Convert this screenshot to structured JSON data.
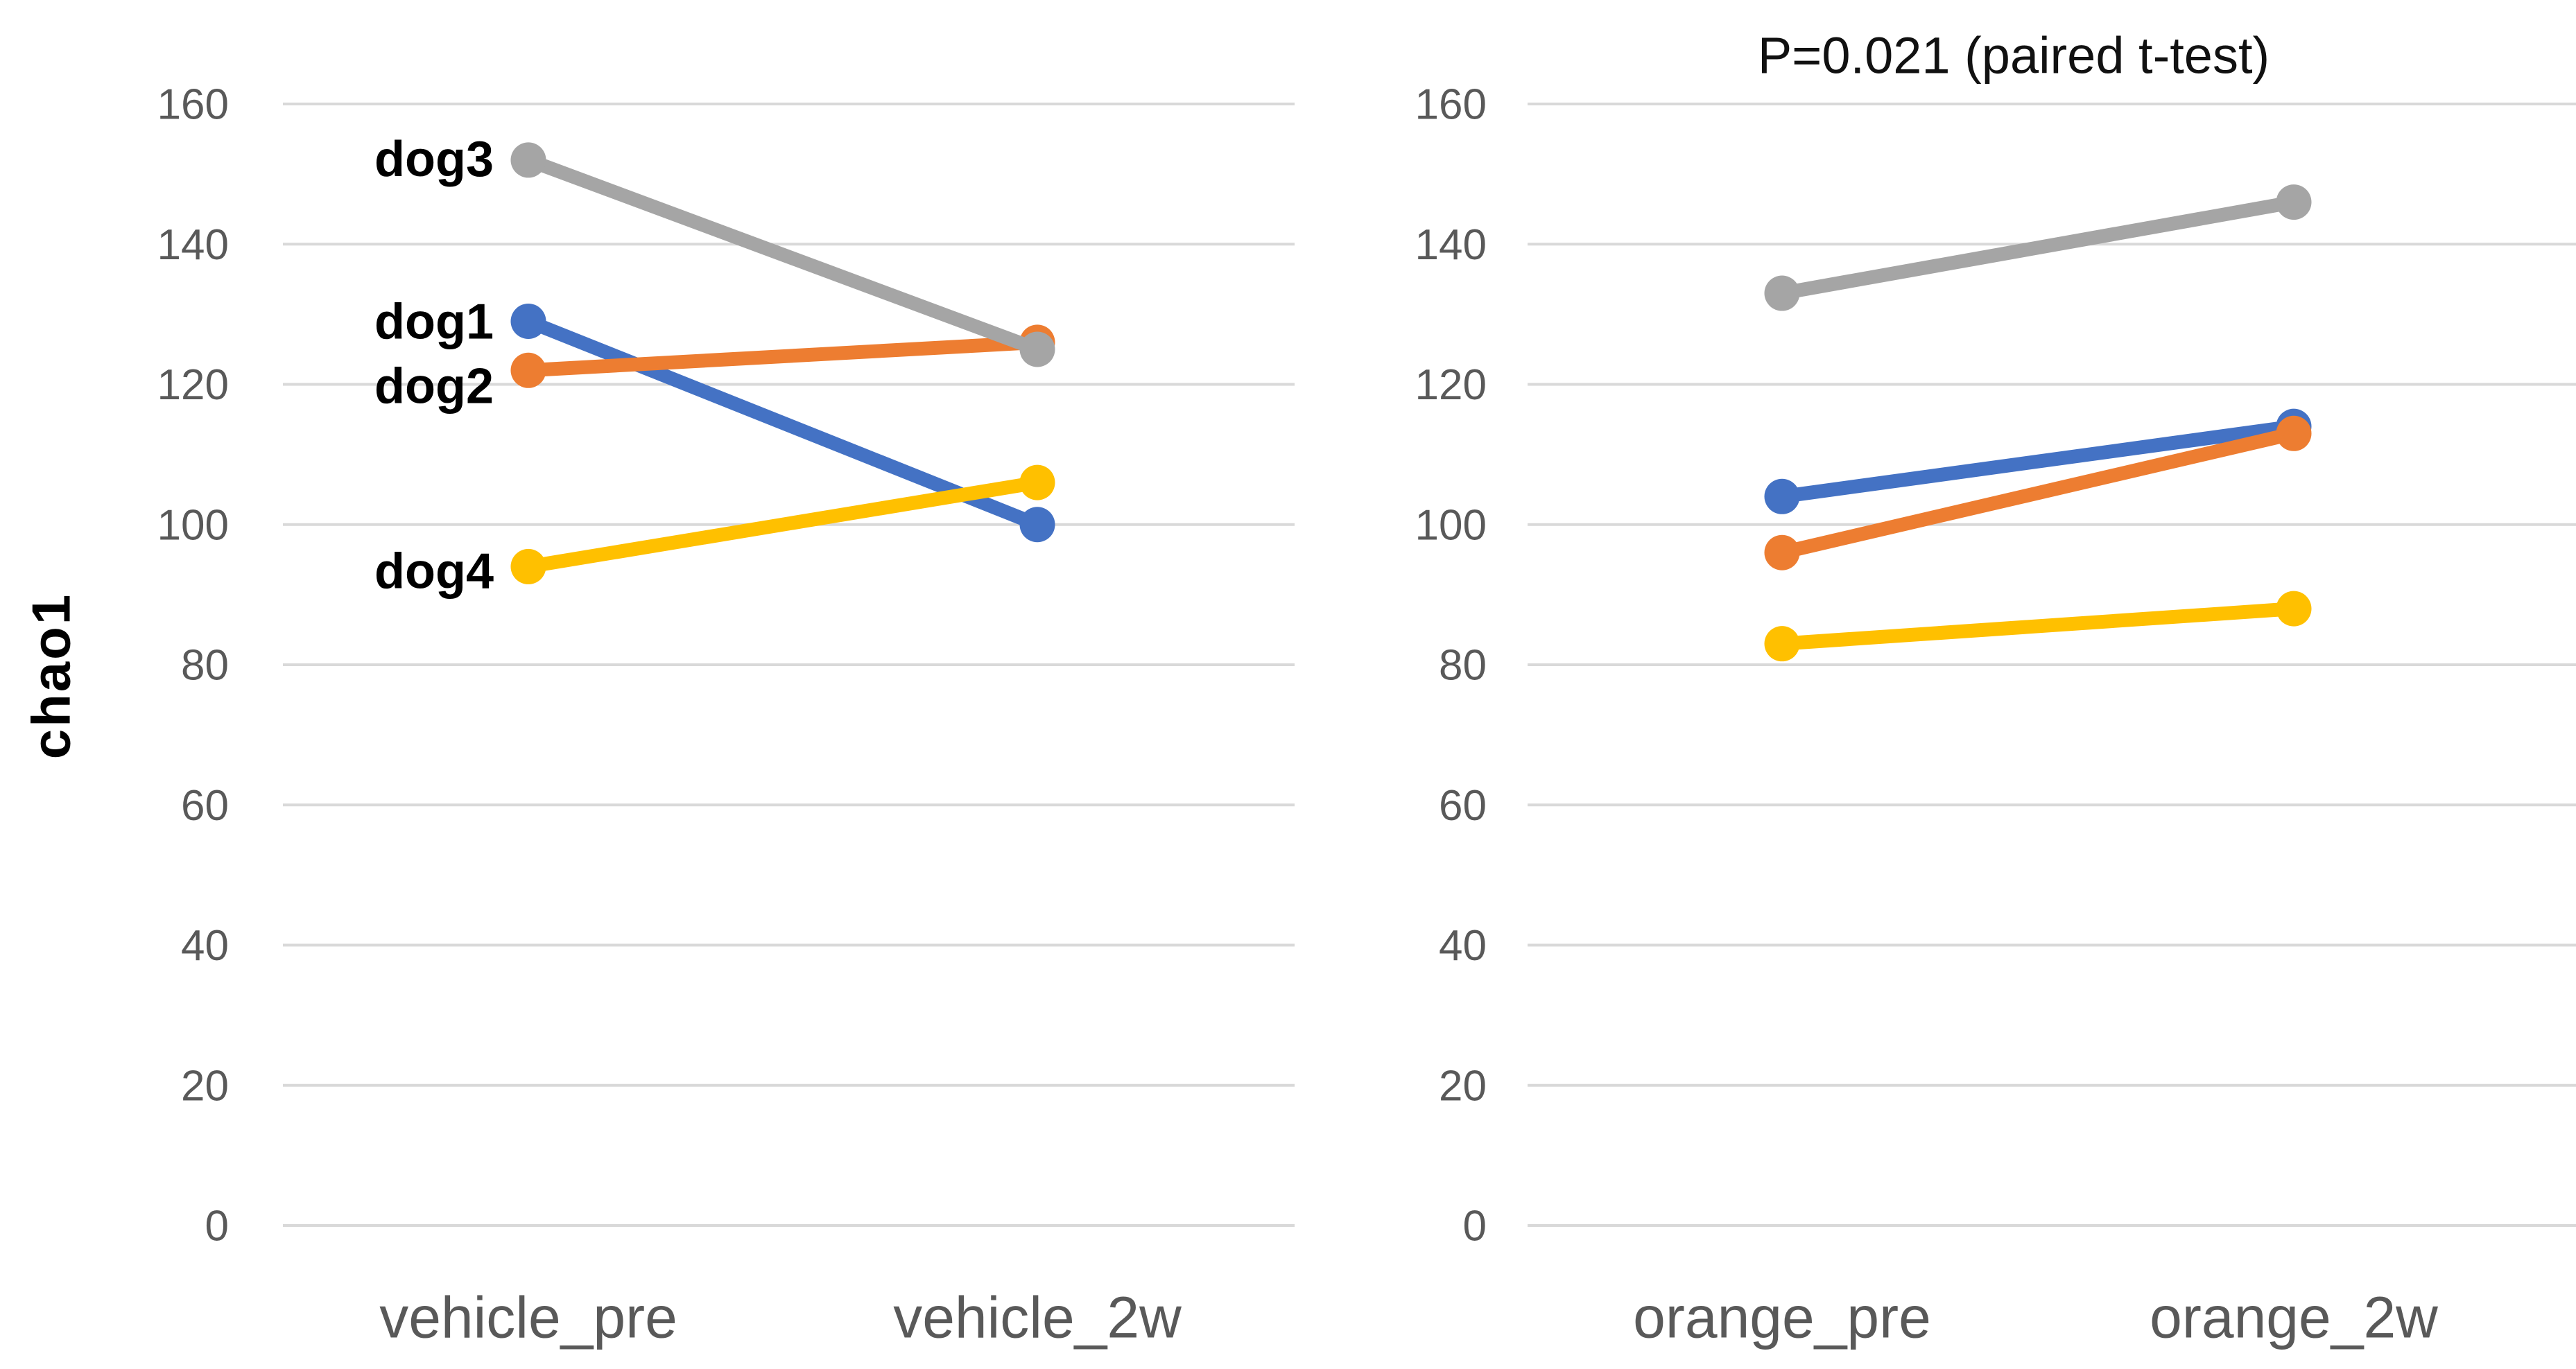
{
  "figure": {
    "y_axis_title": "chao1",
    "annotation": "P=0.021 (paired t-test)"
  },
  "colors": {
    "dog1": "#4472C4",
    "dog2": "#ED7D31",
    "dog3": "#A5A5A5",
    "dog4": "#FFC000",
    "grid": "#D9D9D9",
    "tick_text": "#595959",
    "category_text": "#595959",
    "label_text": "#000000"
  },
  "chart_data": [
    {
      "type": "line",
      "title": "",
      "ylabel": "chao1",
      "categories": [
        "vehicle_pre",
        "vehicle_2w"
      ],
      "series": [
        {
          "name": "dog1",
          "color": "#4472C4",
          "values": [
            129,
            100
          ],
          "label_visible": true
        },
        {
          "name": "dog2",
          "color": "#ED7D31",
          "values": [
            122,
            126
          ],
          "label_visible": true
        },
        {
          "name": "dog3",
          "color": "#A5A5A5",
          "values": [
            152,
            125
          ],
          "label_visible": true
        },
        {
          "name": "dog4",
          "color": "#FFC000",
          "values": [
            94,
            106
          ],
          "label_visible": true
        }
      ],
      "ylim": [
        0,
        160
      ],
      "yticks": [
        160,
        140,
        120,
        100,
        80,
        60,
        40,
        20,
        0
      ],
      "grid": true,
      "legend": "inline-series-labels-left"
    },
    {
      "type": "line",
      "title": "P=0.021 (paired t-test)",
      "ylabel": "chao1",
      "categories": [
        "orange_pre",
        "orange_2w"
      ],
      "series": [
        {
          "name": "dog1",
          "color": "#4472C4",
          "values": [
            104,
            114
          ],
          "label_visible": false
        },
        {
          "name": "dog2",
          "color": "#ED7D31",
          "values": [
            96,
            113
          ],
          "label_visible": false
        },
        {
          "name": "dog3",
          "color": "#A5A5A5",
          "values": [
            133,
            146
          ],
          "label_visible": false
        },
        {
          "name": "dog4",
          "color": "#FFC000",
          "values": [
            83,
            88
          ],
          "label_visible": false
        }
      ],
      "ylim": [
        0,
        160
      ],
      "yticks": [
        160,
        140,
        120,
        100,
        80,
        60,
        40,
        20,
        0
      ],
      "grid": true,
      "legend": "none"
    }
  ]
}
